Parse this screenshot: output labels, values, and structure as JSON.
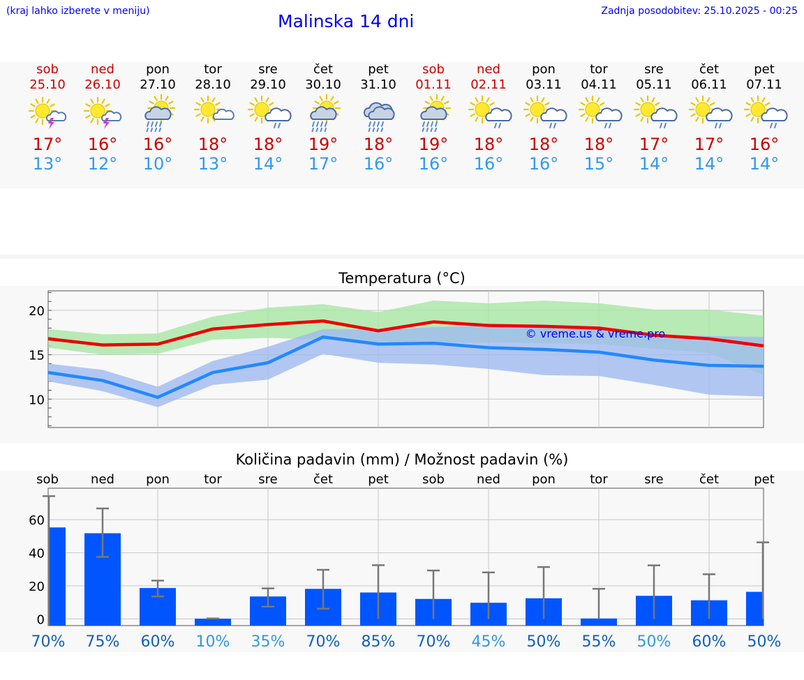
{
  "header": {
    "hint": "(kraj lahko izberete v meniju)",
    "title": "Malinska 14 dni",
    "updated": "Zadnja posodobitev: 25.10.2025 - 00:25"
  },
  "colors": {
    "link": "#0000ee",
    "max_temp": "#cc0000",
    "min_temp": "#3399ee",
    "max_band": "#a8e6a4",
    "min_band": "#9fbaf0",
    "max_line": "#ee0000",
    "min_line": "#2288ff",
    "bar": "#0055ff"
  },
  "days": [
    {
      "name": "sob",
      "date": "25.10",
      "weekend": true,
      "icon": "sun-thunder-icon",
      "max": "17°",
      "min": "13°"
    },
    {
      "name": "ned",
      "date": "26.10",
      "weekend": true,
      "icon": "sun-thunder-icon",
      "max": "16°",
      "min": "12°"
    },
    {
      "name": "pon",
      "date": "27.10",
      "weekend": false,
      "icon": "sun-cloud-heavy-rain-icon",
      "max": "16°",
      "min": "10°"
    },
    {
      "name": "tor",
      "date": "28.10",
      "weekend": false,
      "icon": "sun-small-cloud-icon",
      "max": "18°",
      "min": "13°"
    },
    {
      "name": "sre",
      "date": "29.10",
      "weekend": false,
      "icon": "sun-cloud-rain-icon",
      "max": "18°",
      "min": "14°"
    },
    {
      "name": "čet",
      "date": "30.10",
      "weekend": false,
      "icon": "sun-cloud-heavy-rain-icon",
      "max": "19°",
      "min": "17°"
    },
    {
      "name": "pet",
      "date": "31.10",
      "weekend": false,
      "icon": "cloud-heavy-rain-icon",
      "max": "18°",
      "min": "16°"
    },
    {
      "name": "sob",
      "date": "01.11",
      "weekend": true,
      "icon": "sun-cloud-heavy-rain-icon",
      "max": "19°",
      "min": "16°"
    },
    {
      "name": "ned",
      "date": "02.11",
      "weekend": true,
      "icon": "sun-cloud-rain-icon",
      "max": "18°",
      "min": "16°"
    },
    {
      "name": "pon",
      "date": "03.11",
      "weekend": false,
      "icon": "sun-cloud-rain-icon",
      "max": "18°",
      "min": "16°"
    },
    {
      "name": "tor",
      "date": "04.11",
      "weekend": false,
      "icon": "sun-cloud-rain-icon",
      "max": "18°",
      "min": "15°"
    },
    {
      "name": "sre",
      "date": "05.11",
      "weekend": false,
      "icon": "sun-cloud-rain-icon",
      "max": "17°",
      "min": "14°"
    },
    {
      "name": "čet",
      "date": "06.11",
      "weekend": false,
      "icon": "sun-cloud-rain-icon",
      "max": "17°",
      "min": "14°"
    },
    {
      "name": "pet",
      "date": "07.11",
      "weekend": false,
      "icon": "sun-cloud-rain-icon",
      "max": "16°",
      "min": "14°"
    }
  ],
  "chart_data": [
    {
      "type": "line",
      "title": "Temperatura (°C)",
      "watermark": "© vreme.us & vreme.pro",
      "ylim": [
        6.8,
        22.2
      ],
      "yticks": [
        "20",
        "15",
        "10"
      ],
      "grid": true,
      "series": [
        {
          "values": [
            16.8,
            16.1,
            16.2,
            17.9,
            18.4,
            18.8,
            17.7,
            18.7,
            18.3,
            18.2,
            18.0,
            17.2,
            16.8,
            16.0
          ],
          "band_low": [
            15.8,
            15.0,
            15.1,
            16.7,
            16.9,
            16.7,
            16.1,
            16.3,
            16.4,
            16.3,
            16.2,
            15.7,
            15.2,
            12.7
          ],
          "band_high": [
            17.9,
            17.3,
            17.4,
            19.3,
            20.3,
            20.7,
            19.8,
            21.1,
            20.8,
            21.1,
            20.8,
            20.1,
            20.1,
            19.4
          ]
        },
        {
          "values": [
            13.0,
            12.1,
            10.2,
            13.0,
            14.1,
            17.0,
            16.2,
            16.3,
            15.8,
            15.6,
            15.3,
            14.4,
            13.8,
            13.7
          ],
          "band_low": [
            12.0,
            10.9,
            9.1,
            11.6,
            12.2,
            15.1,
            14.1,
            13.9,
            13.4,
            12.7,
            12.6,
            11.6,
            10.5,
            10.3
          ],
          "band_high": [
            14.0,
            13.3,
            11.4,
            14.3,
            15.9,
            17.9,
            17.8,
            18.1,
            18.3,
            18.3,
            18.2,
            17.3,
            17.1,
            17.0
          ]
        }
      ]
    },
    {
      "type": "bar",
      "title": "Količina padavin (mm) / Možnost padavin (%)",
      "categories": [
        "sob",
        "ned",
        "pon",
        "tor",
        "sre",
        "čet",
        "pet",
        "sob",
        "ned",
        "pon",
        "tor",
        "sre",
        "čet",
        "pet"
      ],
      "ylim": [
        -4,
        79
      ],
      "yticks": [
        "60",
        "40",
        "20",
        "0"
      ],
      "grid": true,
      "values": [
        55.3,
        51.8,
        18.7,
        0.2,
        13.6,
        18.2,
        16.0,
        12.1,
        9.8,
        12.5,
        0.3,
        14.0,
        11.3,
        16.4
      ],
      "error_low": [
        null,
        37.5,
        13.6,
        0.0,
        7.5,
        6.2,
        0.0,
        0.0,
        0.0,
        0.0,
        0.0,
        0.0,
        0.0,
        0.0
      ],
      "error_high": [
        74.2,
        66.8,
        23.2,
        0.3,
        18.5,
        29.7,
        32.5,
        29.3,
        28.1,
        31.4,
        18.2,
        32.4,
        27.0,
        46.3
      ],
      "probability": [
        "70%",
        "75%",
        "60%",
        "10%",
        "35%",
        "70%",
        "85%",
        "70%",
        "45%",
        "50%",
        "55%",
        "50%",
        "60%",
        "50%"
      ],
      "probability_colors": [
        "#1060b8",
        "#1060b8",
        "#1060b8",
        "#3399dd",
        "#3399dd",
        "#1060b8",
        "#1060b8",
        "#1060b8",
        "#3399dd",
        "#1060b8",
        "#1060b8",
        "#3399dd",
        "#1060b8",
        "#1060b8"
      ]
    }
  ]
}
